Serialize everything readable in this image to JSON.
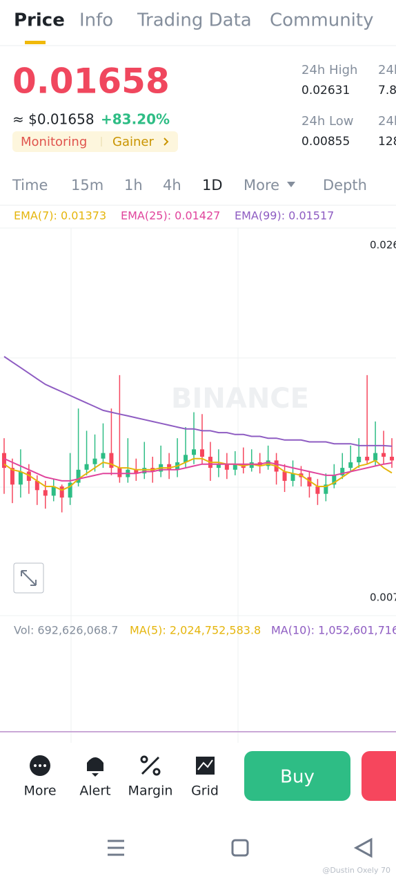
{
  "header": {
    "tabs": [
      "Price",
      "Info",
      "Trading Data",
      "Community"
    ]
  },
  "ticker": {
    "price": "0.01658",
    "usd": "≈ $0.01658",
    "change": "+83.20%",
    "tags": [
      "Monitoring",
      "Gainer"
    ],
    "stats": [
      {
        "label": "24h High",
        "value": "0.02631"
      },
      {
        "label": "24h Low",
        "value": "0.00855"
      }
    ],
    "stats_cut": [
      {
        "label": "24h",
        "value": "7.8"
      },
      {
        "label": "24h",
        "value": "128"
      }
    ]
  },
  "intervals": [
    "Time",
    "15m",
    "1h",
    "4h",
    "1D",
    "More",
    "Depth"
  ],
  "chart_data": {
    "type": "candlestick",
    "watermark": "BINANCE",
    "open": [
      0.0148,
      0.014,
      0.0131,
      0.0138,
      0.0133,
      0.0128,
      0.0125,
      0.013,
      0.0124,
      0.0132,
      0.0139,
      0.0142,
      0.0145,
      0.0148,
      0.014,
      0.0135,
      0.0139,
      0.0137,
      0.014,
      0.0138,
      0.0142,
      0.0139,
      0.0143,
      0.0147,
      0.015,
      0.0146,
      0.014,
      0.0142,
      0.0139,
      0.0142,
      0.014,
      0.0143,
      0.0141,
      0.0144,
      0.0138,
      0.0133,
      0.0137,
      0.0135,
      0.013,
      0.0126,
      0.0131,
      0.0136,
      0.014,
      0.0143,
      0.0146,
      0.0144,
      0.0148,
      0.0146
    ],
    "high": [
      0.0156,
      0.0145,
      0.015,
      0.0142,
      0.0136,
      0.0133,
      0.0134,
      0.0131,
      0.0148,
      0.0172,
      0.016,
      0.0158,
      0.0164,
      0.0172,
      0.019,
      0.0156,
      0.0145,
      0.0154,
      0.0146,
      0.0152,
      0.0148,
      0.0156,
      0.0162,
      0.017,
      0.0169,
      0.0154,
      0.015,
      0.0148,
      0.0149,
      0.0151,
      0.015,
      0.0148,
      0.0152,
      0.0148,
      0.0142,
      0.0144,
      0.0141,
      0.0138,
      0.0134,
      0.0137,
      0.0142,
      0.0148,
      0.0152,
      0.0156,
      0.019,
      0.0165,
      0.016,
      0.0156
    ],
    "low": [
      0.0126,
      0.0121,
      0.0124,
      0.0126,
      0.012,
      0.0118,
      0.0122,
      0.0116,
      0.012,
      0.013,
      0.0136,
      0.0138,
      0.014,
      0.0136,
      0.0132,
      0.0132,
      0.0133,
      0.0134,
      0.0132,
      0.0135,
      0.0134,
      0.0135,
      0.014,
      0.0142,
      0.0142,
      0.0133,
      0.0135,
      0.0134,
      0.0136,
      0.0137,
      0.0138,
      0.0137,
      0.0139,
      0.0131,
      0.0127,
      0.013,
      0.013,
      0.0124,
      0.012,
      0.0122,
      0.0129,
      0.0134,
      0.0138,
      0.014,
      0.0142,
      0.0141,
      0.0142,
      0.014
    ],
    "close": [
      0.014,
      0.0131,
      0.0138,
      0.0133,
      0.0128,
      0.0125,
      0.013,
      0.0124,
      0.0132,
      0.0139,
      0.0142,
      0.0145,
      0.0148,
      0.014,
      0.0135,
      0.0139,
      0.0137,
      0.014,
      0.0138,
      0.0142,
      0.0139,
      0.0143,
      0.0147,
      0.015,
      0.0146,
      0.014,
      0.0142,
      0.0139,
      0.0142,
      0.014,
      0.0143,
      0.0141,
      0.0144,
      0.0138,
      0.0133,
      0.0137,
      0.0135,
      0.013,
      0.0126,
      0.0131,
      0.0136,
      0.014,
      0.0143,
      0.0146,
      0.0144,
      0.0148,
      0.0146,
      0.0144
    ],
    "up_color": "#2ebd85",
    "down_color": "#f6465d",
    "series": [
      {
        "name": "EMA(7): 0.01373",
        "color": "#e5b50c",
        "values": [
          0.0142,
          0.0139,
          0.0138,
          0.0136,
          0.0133,
          0.013,
          0.013,
          0.0128,
          0.013,
          0.0134,
          0.0137,
          0.014,
          0.0143,
          0.0142,
          0.014,
          0.014,
          0.0139,
          0.0139,
          0.0139,
          0.014,
          0.014,
          0.0141,
          0.0143,
          0.0145,
          0.0145,
          0.0143,
          0.0143,
          0.0142,
          0.0142,
          0.0141,
          0.0142,
          0.0141,
          0.0142,
          0.0141,
          0.0138,
          0.0137,
          0.0136,
          0.0133,
          0.013,
          0.013,
          0.0132,
          0.0135,
          0.0138,
          0.0141,
          0.0142,
          0.0144,
          0.014,
          0.01373
        ]
      },
      {
        "name": "EMA(25): 0.01427",
        "color": "#e0449c",
        "values": [
          0.0145,
          0.0143,
          0.0141,
          0.0139,
          0.0137,
          0.0135,
          0.0134,
          0.0133,
          0.0133,
          0.0134,
          0.0135,
          0.0136,
          0.0137,
          0.0137,
          0.0137,
          0.0137,
          0.0137,
          0.0138,
          0.0138,
          0.0139,
          0.0139,
          0.0139,
          0.014,
          0.0141,
          0.0142,
          0.0142,
          0.0142,
          0.0142,
          0.0142,
          0.0142,
          0.0142,
          0.0142,
          0.0143,
          0.0142,
          0.0141,
          0.014,
          0.0139,
          0.0138,
          0.0137,
          0.0136,
          0.0136,
          0.0137,
          0.0138,
          0.0139,
          0.014,
          0.0141,
          0.0142,
          0.01427
        ]
      },
      {
        "name": "EMA(99): 0.01517",
        "color": "#8e5cc2",
        "values": [
          0.02,
          0.0197,
          0.0194,
          0.0191,
          0.0188,
          0.0185,
          0.0183,
          0.0181,
          0.0179,
          0.0177,
          0.0175,
          0.0173,
          0.0171,
          0.017,
          0.0169,
          0.0168,
          0.0167,
          0.0166,
          0.0165,
          0.0164,
          0.0163,
          0.0162,
          0.0161,
          0.0161,
          0.016,
          0.016,
          0.0159,
          0.0159,
          0.0158,
          0.0158,
          0.0157,
          0.0157,
          0.0156,
          0.0156,
          0.0155,
          0.0155,
          0.0155,
          0.0154,
          0.0154,
          0.0154,
          0.0153,
          0.0153,
          0.0153,
          0.0152,
          0.0152,
          0.0152,
          0.0152,
          0.01517
        ]
      }
    ],
    "ylim": [
      0.00607,
      0.02693
    ],
    "yticks": [
      0.026,
      0.007
    ]
  },
  "volume": {
    "vol": "Vol: 692,626,068.7",
    "ma5": "MA(5): 2,024,752,583.8",
    "ma10": "MA(10): 1,052,601,716"
  },
  "toolbar": {
    "items": [
      "More",
      "Alert",
      "Margin",
      "Grid"
    ],
    "buy": "Buy"
  },
  "watermark": "@Dustin Oxely 70"
}
